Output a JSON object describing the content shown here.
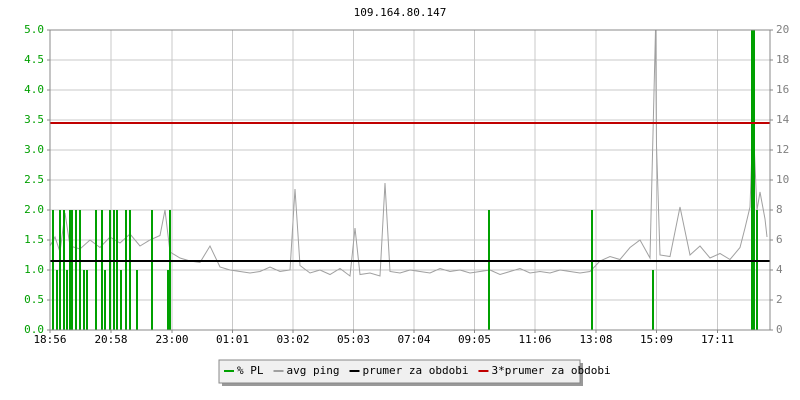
{
  "chart_data": {
    "type": "line",
    "title": "109.164.80.147",
    "xlim": [
      "18:56",
      "18:56"
    ],
    "xticks": [
      "18:56",
      "20:58",
      "23:00",
      "01:01",
      "03:02",
      "05:03",
      "07:04",
      "09:05",
      "11:06",
      "13:08",
      "15:09",
      "17:11"
    ],
    "ylim": [
      0,
      5
    ],
    "yticks": [
      {
        "value": 0,
        "label": "0.0"
      },
      {
        "value": 0.5,
        "label": "0.5"
      },
      {
        "value": 1,
        "label": "1.0"
      },
      {
        "value": 1.5,
        "label": "1.5"
      },
      {
        "value": 2,
        "label": "2.0"
      },
      {
        "value": 2.5,
        "label": "2.5"
      },
      {
        "value": 3,
        "label": "3.0"
      },
      {
        "value": 3.5,
        "label": "3.5"
      },
      {
        "value": 4,
        "label": "4.0"
      },
      {
        "value": 4.5,
        "label": "4.5"
      },
      {
        "value": 5,
        "label": "5.0"
      }
    ],
    "y2lim": [
      0,
      20
    ],
    "y2ticks": [
      0,
      2,
      4,
      6,
      8,
      10,
      12,
      14,
      16,
      18,
      20
    ],
    "grid": true,
    "series": [
      {
        "name": "% PL",
        "color": "#00a000",
        "type": "bar",
        "x": [
          "19:02",
          "19:10",
          "19:16",
          "19:24",
          "19:30",
          "19:36",
          "19:40",
          "19:48",
          "19:56",
          "20:04",
          "20:10",
          "20:28",
          "20:40",
          "20:46",
          "20:56",
          "21:04",
          "21:10",
          "21:18",
          "21:28",
          "21:36",
          "21:50",
          "22:20",
          "22:52",
          "22:56",
          "09:34",
          "13:00",
          "15:02",
          "18:20",
          "18:24",
          "18:30"
        ],
        "values": [
          2,
          1,
          2,
          2,
          1,
          2,
          2,
          2,
          2,
          1,
          1,
          2,
          2,
          1,
          2,
          2,
          2,
          1,
          2,
          2,
          1,
          2,
          1,
          2,
          2,
          2,
          1,
          5,
          5,
          2
        ]
      },
      {
        "name": "avg ping",
        "color": "#a0a0a0",
        "type": "line",
        "axis": "y2",
        "x": [
          "18:56",
          "19:06",
          "19:16",
          "19:26",
          "19:36",
          "19:56",
          "20:16",
          "20:36",
          "20:56",
          "21:16",
          "21:36",
          "21:56",
          "22:16",
          "22:36",
          "22:46",
          "22:56",
          "23:16",
          "23:36",
          "23:56",
          "00:16",
          "00:36",
          "00:56",
          "01:16",
          "01:36",
          "01:56",
          "02:16",
          "02:36",
          "02:56",
          "03:06",
          "03:16",
          "03:36",
          "03:56",
          "04:16",
          "04:36",
          "04:56",
          "05:06",
          "05:16",
          "05:36",
          "05:56",
          "06:06",
          "06:16",
          "06:36",
          "06:56",
          "07:16",
          "07:36",
          "07:56",
          "08:16",
          "08:36",
          "08:56",
          "09:16",
          "09:36",
          "09:56",
          "10:16",
          "10:36",
          "10:56",
          "11:16",
          "11:36",
          "11:56",
          "12:16",
          "12:36",
          "12:56",
          "13:16",
          "13:36",
          "13:56",
          "14:16",
          "14:36",
          "14:56",
          "15:07",
          "15:09",
          "15:16",
          "15:36",
          "15:56",
          "16:16",
          "16:36",
          "16:56",
          "17:16",
          "17:36",
          "17:56",
          "18:06",
          "18:16",
          "18:22",
          "18:30",
          "18:36",
          "18:46",
          "18:50"
        ],
        "values": [
          5.6,
          6.2,
          5.2,
          7.8,
          5.6,
          5.4,
          6.0,
          5.5,
          6.2,
          5.8,
          6.4,
          5.6,
          6.0,
          6.3,
          8.0,
          5.2,
          4.8,
          4.6,
          4.5,
          5.6,
          4.2,
          4.0,
          3.9,
          3.8,
          3.9,
          4.2,
          3.9,
          4.0,
          9.4,
          4.3,
          3.8,
          4.0,
          3.7,
          4.1,
          3.6,
          6.8,
          3.7,
          3.8,
          3.6,
          9.8,
          3.9,
          3.8,
          4.0,
          3.9,
          3.8,
          4.1,
          3.9,
          4.0,
          3.8,
          3.9,
          4.0,
          3.7,
          3.9,
          4.1,
          3.8,
          3.9,
          3.8,
          4.0,
          3.9,
          3.8,
          3.9,
          4.6,
          4.9,
          4.7,
          5.5,
          6.0,
          4.8,
          20,
          12.3,
          5.0,
          4.9,
          8.2,
          5.0,
          5.6,
          4.8,
          5.1,
          4.7,
          5.5,
          6.8,
          8.2,
          14,
          8.0,
          9.2,
          7.4,
          6.2
        ]
      },
      {
        "name": "prumer za obdobi",
        "color": "#000000",
        "type": "hline",
        "value": 1.15
      },
      {
        "name": "3*prumer za obdobi",
        "color": "#c00000",
        "type": "hline",
        "value": 3.45
      }
    ]
  }
}
